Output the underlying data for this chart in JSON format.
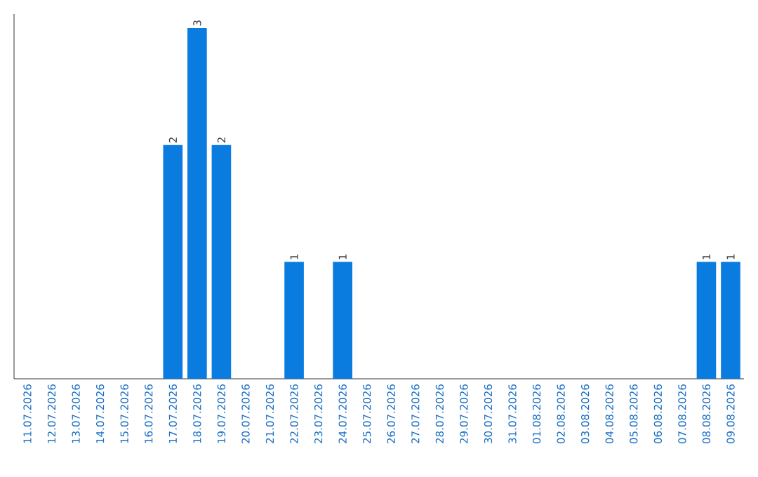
{
  "chart_data": {
    "type": "bar",
    "categories": [
      "11.07.2026",
      "12.07.2026",
      "13.07.2026",
      "14.07.2026",
      "15.07.2026",
      "16.07.2026",
      "17.07.2026",
      "18.07.2026",
      "19.07.2026",
      "20.07.2026",
      "21.07.2026",
      "22.07.2026",
      "23.07.2026",
      "24.07.2026",
      "25.07.2026",
      "26.07.2026",
      "27.07.2026",
      "28.07.2026",
      "29.07.2026",
      "30.07.2026",
      "31.07.2026",
      "01.08.2026",
      "02.08.2026",
      "03.08.2026",
      "04.08.2026",
      "05.08.2026",
      "06.08.2026",
      "07.08.2026",
      "08.08.2026",
      "09.08.2026"
    ],
    "values": [
      0,
      0,
      0,
      0,
      0,
      0,
      2,
      3,
      2,
      0,
      0,
      1,
      0,
      1,
      0,
      0,
      0,
      0,
      0,
      0,
      0,
      0,
      0,
      0,
      0,
      0,
      0,
      0,
      1,
      1
    ],
    "value_labels": [
      null,
      null,
      null,
      null,
      null,
      null,
      "2",
      "3",
      "2",
      null,
      null,
      "1",
      null,
      "1",
      null,
      null,
      null,
      null,
      null,
      null,
      null,
      null,
      null,
      null,
      null,
      null,
      null,
      null,
      "1",
      "1"
    ],
    "color": "#0a7ce0"
  }
}
